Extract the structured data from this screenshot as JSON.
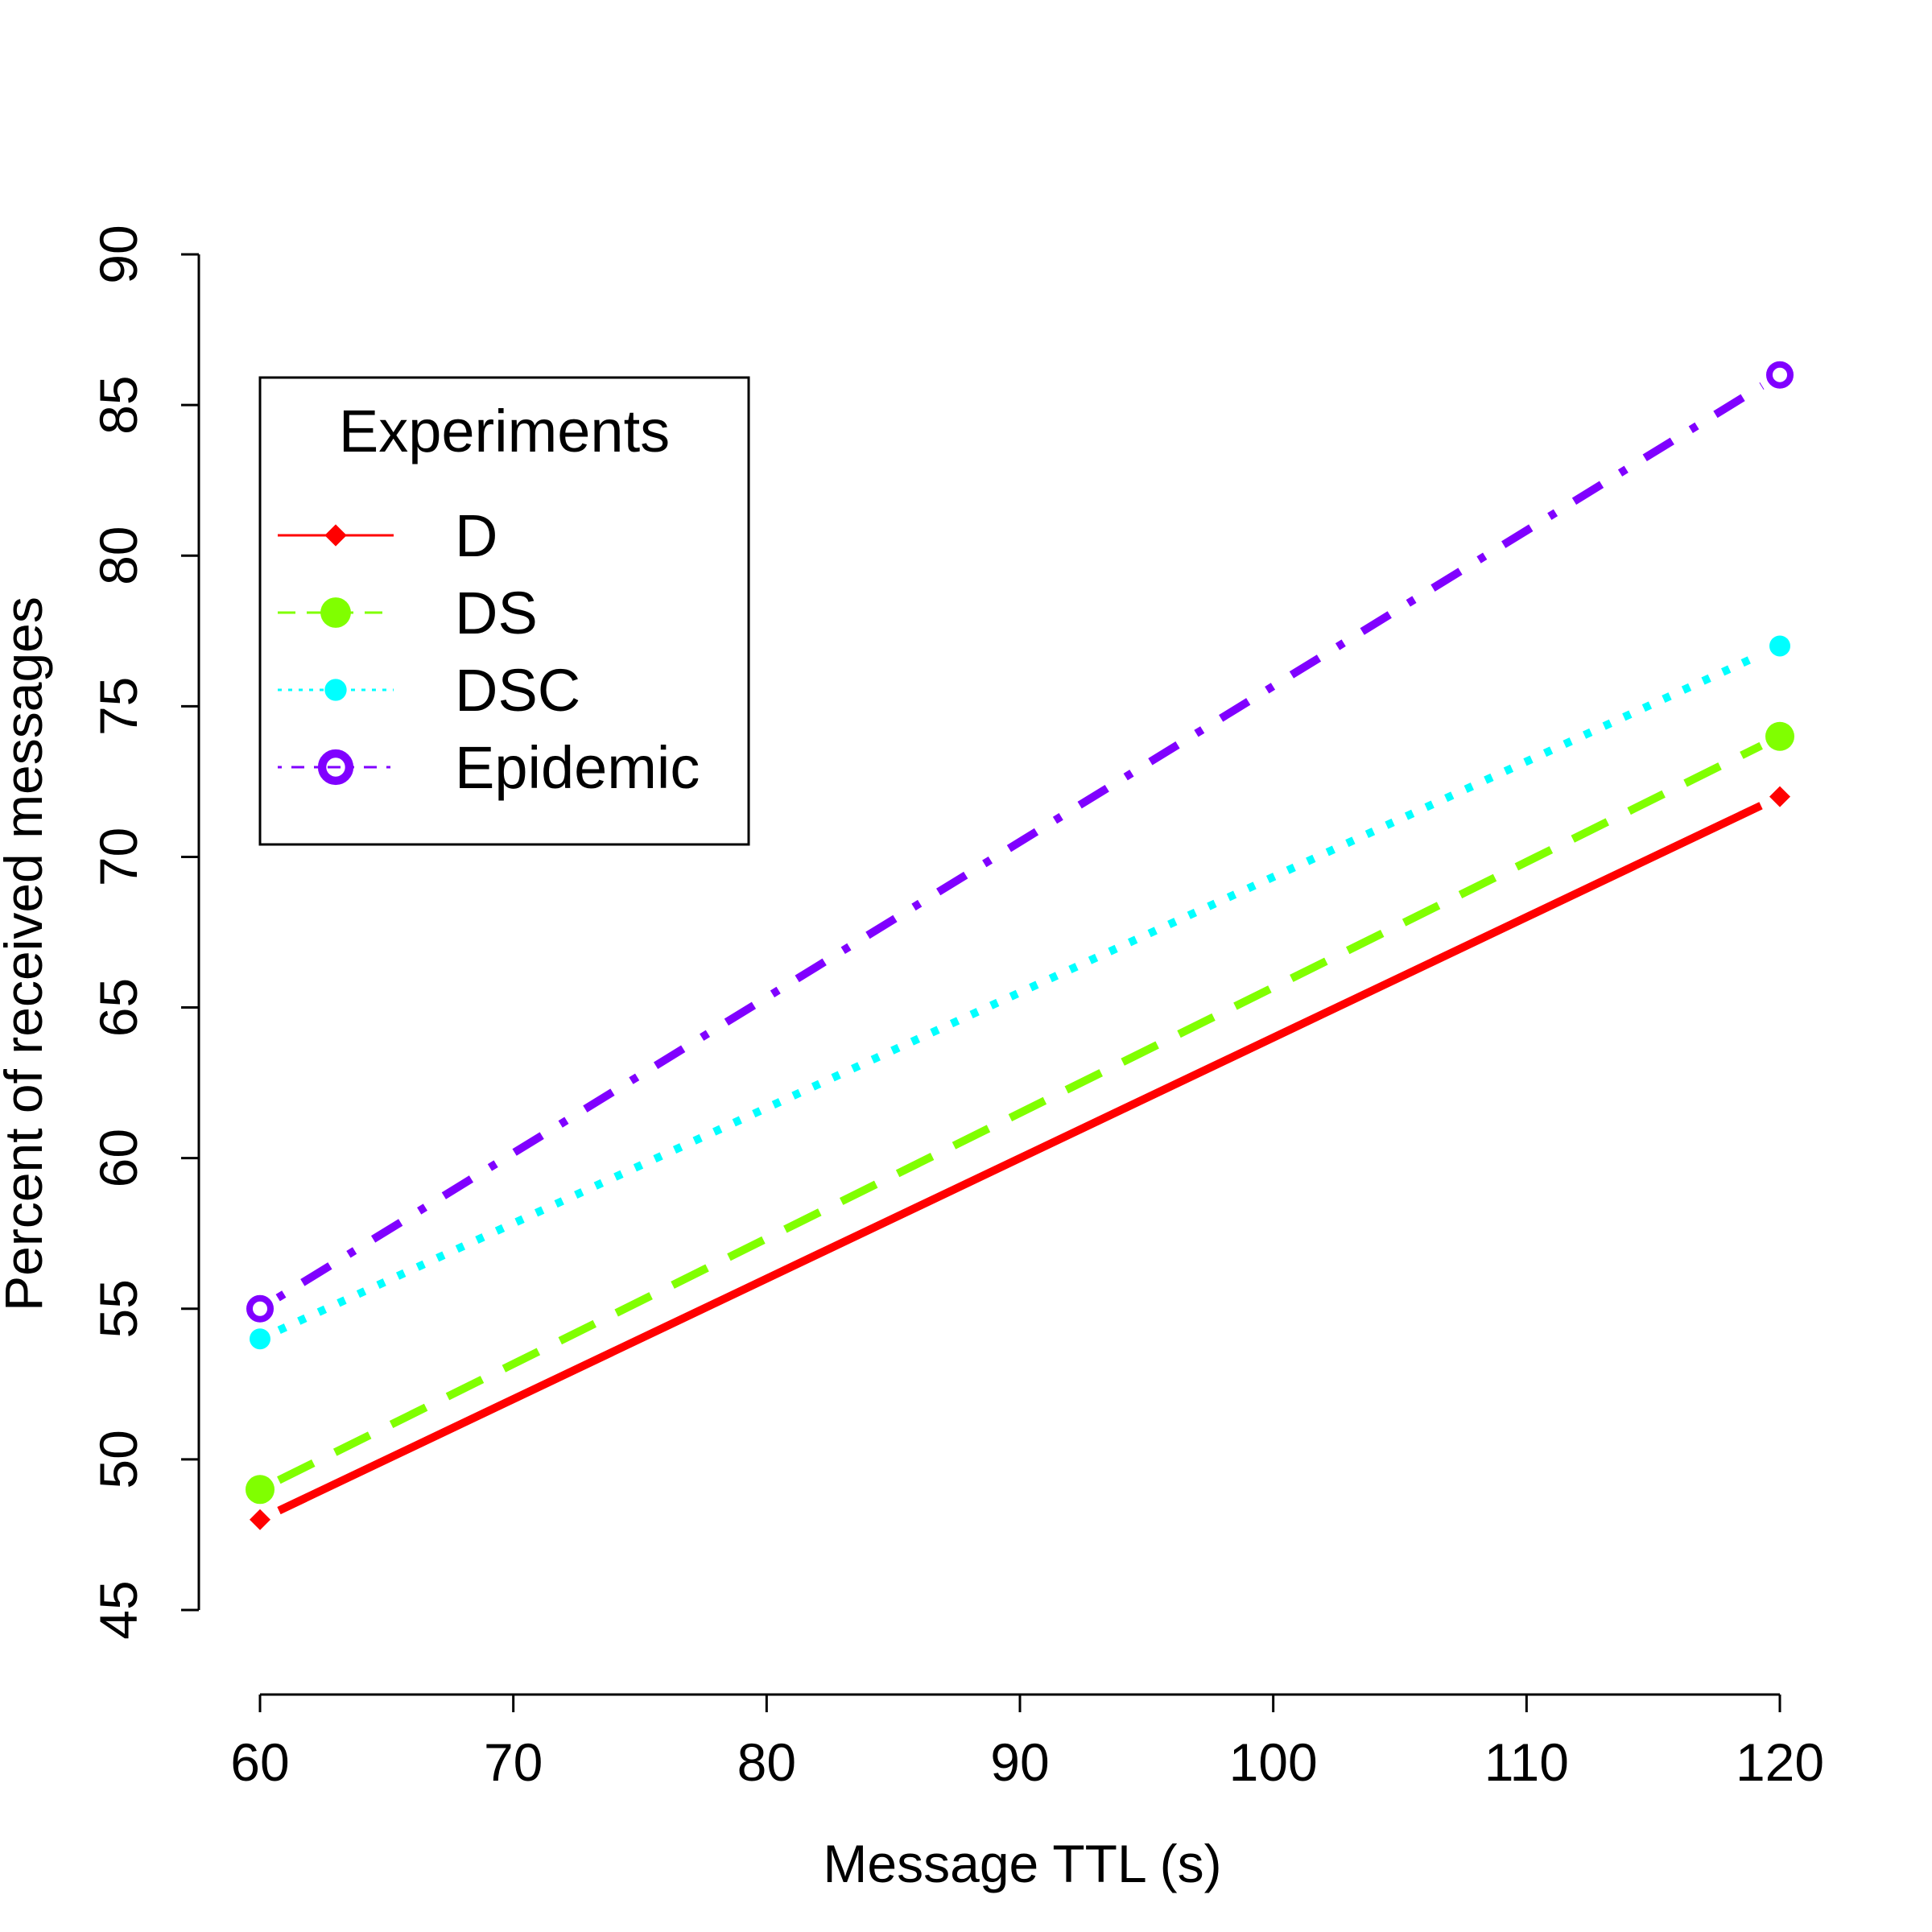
{
  "chart_data": {
    "type": "line",
    "title": "",
    "xlabel": "Message TTL (s)",
    "ylabel": "Percent of received messages",
    "xlim": [
      60,
      120
    ],
    "ylim": [
      45,
      90
    ],
    "x_ticks": [
      60,
      70,
      80,
      90,
      100,
      110,
      120
    ],
    "y_ticks": [
      45,
      50,
      55,
      60,
      65,
      70,
      75,
      80,
      85,
      90
    ],
    "grid": false,
    "legend": {
      "title": "Experiments",
      "position": "top-left"
    },
    "series": [
      {
        "name": "D",
        "color": "#ff0000",
        "line_style": "solid",
        "marker": "filled-diamond",
        "x": [
          60,
          120
        ],
        "values": [
          48,
          72
        ]
      },
      {
        "name": "DS",
        "color": "#80ff00",
        "line_style": "dashed",
        "marker": "filled-circle-large",
        "x": [
          60,
          120
        ],
        "values": [
          49,
          74
        ]
      },
      {
        "name": "DSC",
        "color": "#00ffff",
        "line_style": "dotted",
        "marker": "filled-circle",
        "x": [
          60,
          120
        ],
        "values": [
          54,
          77
        ]
      },
      {
        "name": "Epidemic",
        "color": "#8000ff",
        "line_style": "dot-dash",
        "marker": "open-circle",
        "x": [
          60,
          120
        ],
        "values": [
          55,
          86
        ]
      }
    ]
  }
}
